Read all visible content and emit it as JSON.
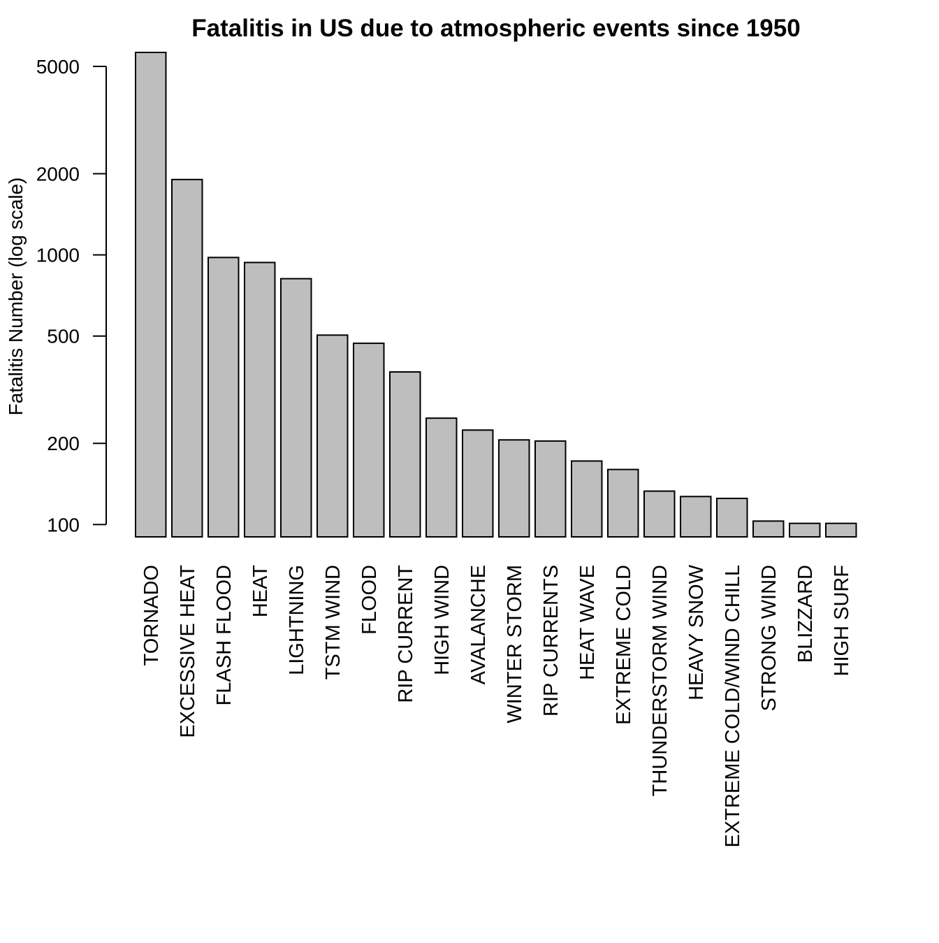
{
  "chart_data": {
    "type": "bar",
    "title": "Fatalitis in US due to atmospheric events since 1950",
    "xlabel": "",
    "ylabel": "Fatalitis Number (log scale)",
    "yscale": "log",
    "ylim": [
      90,
      5633
    ],
    "yticks": [
      100,
      200,
      500,
      1000,
      2000,
      5000
    ],
    "ytick_labels": [
      "100",
      "200",
      "500",
      "1000",
      "2000",
      "5000"
    ],
    "grid": false,
    "bar_color": "#BEBEBE",
    "bar_edge_color": "#000000",
    "categories": [
      "TORNADO",
      "EXCESSIVE HEAT",
      "FLASH FLOOD",
      "HEAT",
      "LIGHTNING",
      "TSTM WIND",
      "FLOOD",
      "RIP CURRENT",
      "HIGH WIND",
      "AVALANCHE",
      "WINTER STORM",
      "RIP CURRENTS",
      "HEAT WAVE",
      "EXTREME COLD",
      "THUNDERSTORM WIND",
      "HEAVY SNOW",
      "EXTREME COLD/WIND CHILL",
      "STRONG WIND",
      "BLIZZARD",
      "HIGH SURF"
    ],
    "values": [
      5633,
      1903,
      978,
      937,
      816,
      504,
      470,
      368,
      248,
      224,
      206,
      204,
      172,
      160,
      133,
      127,
      125,
      103,
      101,
      101
    ]
  }
}
